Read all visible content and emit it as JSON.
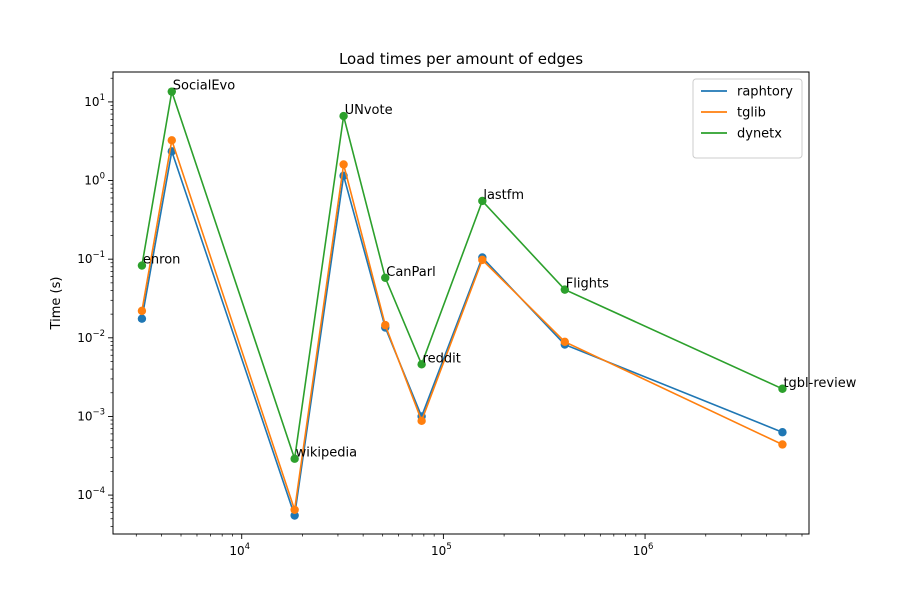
{
  "chart_data": {
    "type": "line",
    "title": "Load times per amount of edges",
    "xlabel": "",
    "ylabel": "Time (s)",
    "xscale": "log",
    "yscale": "log",
    "xlim": [
      2300,
      6500000
    ],
    "ylim": [
      3.2e-05,
      24
    ],
    "grid": false,
    "legend_position": "top-right",
    "x_ticks": [
      {
        "value": 10000,
        "base": "10",
        "exp": "4"
      },
      {
        "value": 100000,
        "base": "10",
        "exp": "5"
      },
      {
        "value": 1000000,
        "base": "10",
        "exp": "6"
      }
    ],
    "y_ticks": [
      {
        "value": 0.0001,
        "base": "10",
        "exp": "−4"
      },
      {
        "value": 0.001,
        "base": "10",
        "exp": "−3"
      },
      {
        "value": 0.01,
        "base": "10",
        "exp": "−2"
      },
      {
        "value": 0.1,
        "base": "10",
        "exp": "−1"
      },
      {
        "value": 1,
        "base": "10",
        "exp": "0"
      },
      {
        "value": 10,
        "base": "10",
        "exp": "1"
      }
    ],
    "x": [
      3200,
      4500,
      18300,
      32000,
      51500,
      78000,
      156000,
      400000,
      4800000
    ],
    "point_labels": [
      "enron",
      "SocialEvo",
      "wikipedia",
      "UNvote",
      "CanParl",
      "reddit",
      "lastfm",
      "Flights",
      "tgbl-review"
    ],
    "series": [
      {
        "name": "raphtory",
        "color": "#1f77b4",
        "values": [
          0.0175,
          2.35,
          5.5e-05,
          1.15,
          0.0135,
          0.001,
          0.105,
          0.0082,
          0.00063
        ]
      },
      {
        "name": "tglib",
        "color": "#ff7f0e",
        "values": [
          0.022,
          3.25,
          6.5e-05,
          1.6,
          0.0145,
          0.00088,
          0.098,
          0.0089,
          0.00044
        ]
      },
      {
        "name": "dynetx",
        "color": "#2ca02c",
        "values": [
          0.083,
          13.5,
          0.00029,
          6.6,
          0.058,
          0.0046,
          0.55,
          0.041,
          0.00225
        ]
      }
    ]
  }
}
